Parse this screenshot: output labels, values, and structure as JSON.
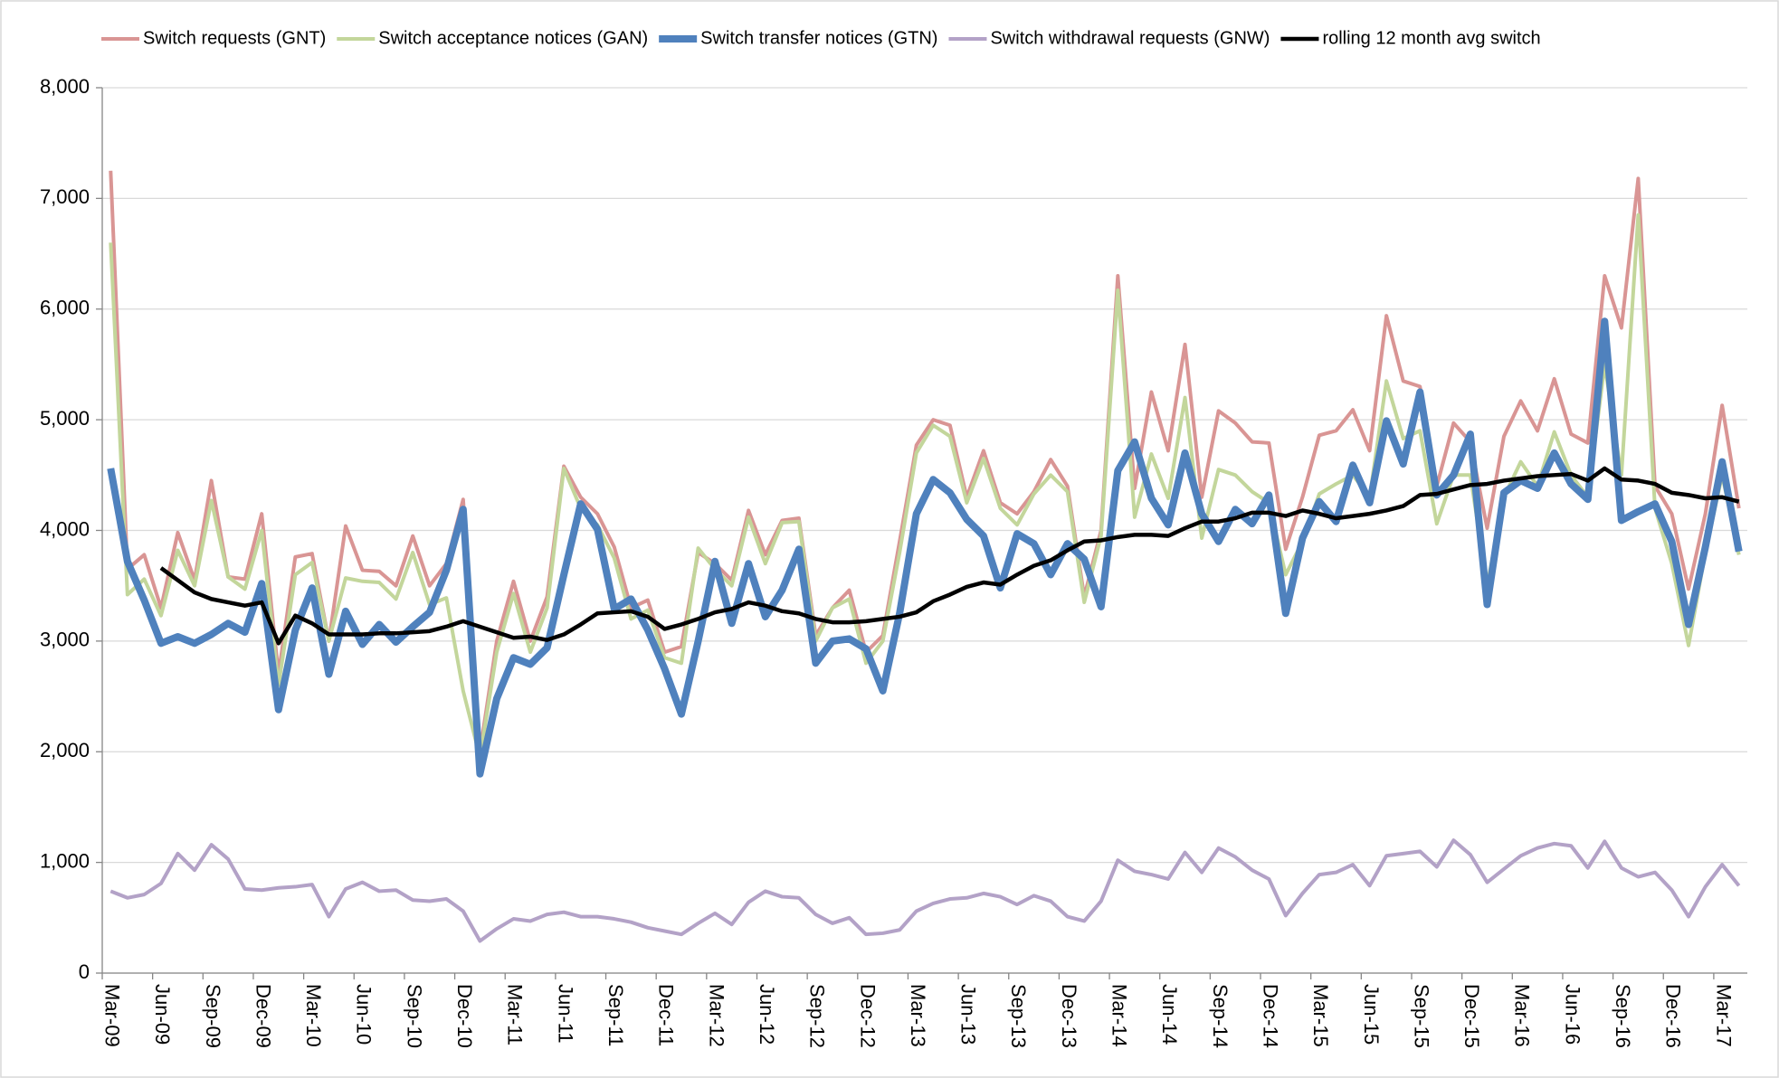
{
  "chart_data": {
    "type": "line",
    "categories": [
      "Mar-09",
      null,
      null,
      "Jun-09",
      null,
      null,
      "Sep-09",
      null,
      null,
      "Dec-09",
      null,
      null,
      "Mar-10",
      null,
      null,
      "Jun-10",
      null,
      null,
      "Sep-10",
      null,
      null,
      "Dec-10",
      null,
      null,
      "Mar-11",
      null,
      null,
      "Jun-11",
      null,
      null,
      "Sep-11",
      null,
      null,
      "Dec-11",
      null,
      null,
      "Mar-12",
      null,
      null,
      "Jun-12",
      null,
      null,
      "Sep-12",
      null,
      null,
      "Dec-12",
      null,
      null,
      "Mar-13",
      null,
      null,
      "Jun-13",
      null,
      null,
      "Sep-13",
      null,
      null,
      "Dec-13",
      null,
      null,
      "Mar-14",
      null,
      null,
      "Jun-14",
      null,
      null,
      "Sep-14",
      null,
      null,
      "Dec-14",
      null,
      null,
      "Mar-15",
      null,
      null,
      "Jun-15",
      null,
      null,
      "Sep-15",
      null,
      null,
      "Dec-15",
      null,
      null,
      "Mar-16",
      null,
      null,
      "Jun-16",
      null,
      null,
      "Sep-16",
      null,
      null,
      "Dec-16",
      null,
      null,
      "Mar-17",
      null
    ],
    "series": [
      {
        "name": "Switch requests (GNT)",
        "color": "#d99594",
        "values": [
          7250,
          3650,
          3780,
          3300,
          3980,
          3550,
          4450,
          3580,
          3560,
          4150,
          2700,
          3760,
          3790,
          3000,
          4040,
          3640,
          3630,
          3500,
          3950,
          3500,
          3700,
          4280,
          2000,
          3000,
          3540,
          3000,
          3400,
          4580,
          4300,
          4150,
          3850,
          3300,
          3370,
          2900,
          2950,
          3800,
          3700,
          3550,
          4180,
          3780,
          4090,
          4110,
          3050,
          3300,
          3460,
          2900,
          3050,
          3900,
          4770,
          5000,
          4950,
          4300,
          4720,
          4250,
          4150,
          4350,
          4640,
          4400,
          3400,
          4000,
          6300,
          4380,
          5250,
          4720,
          5680,
          4300,
          5080,
          4970,
          4800,
          4790,
          3830,
          4300,
          4860,
          4900,
          5090,
          4720,
          5940,
          5350,
          5300,
          4400,
          4970,
          4800,
          4020,
          4850,
          5170,
          4900,
          5370,
          4870,
          4790,
          6300,
          5830,
          7180,
          4400,
          4150,
          3470,
          4150,
          5130,
          4200
        ]
      },
      {
        "name": "Switch acceptance notices (GAN)",
        "color": "#c3d69b",
        "values": [
          6600,
          3420,
          3560,
          3230,
          3820,
          3500,
          4270,
          3580,
          3470,
          4000,
          2600,
          3600,
          3710,
          3000,
          3570,
          3540,
          3530,
          3380,
          3800,
          3330,
          3390,
          2550,
          1950,
          2900,
          3430,
          2900,
          3300,
          4560,
          4200,
          4050,
          3750,
          3200,
          3280,
          2850,
          2800,
          3840,
          3650,
          3500,
          4120,
          3700,
          4070,
          4080,
          3000,
          3300,
          3380,
          2800,
          3000,
          3800,
          4700,
          4950,
          4850,
          4250,
          4650,
          4200,
          4050,
          4330,
          4500,
          4350,
          3350,
          3950,
          6170,
          4120,
          4690,
          4290,
          5200,
          3930,
          4550,
          4500,
          4350,
          4250,
          3600,
          3900,
          4330,
          4420,
          4500,
          4300,
          5350,
          4830,
          4900,
          4060,
          4500,
          4500,
          3500,
          4300,
          4620,
          4400,
          4890,
          4500,
          4300,
          5500,
          4500,
          6850,
          4200,
          3700,
          2960,
          3800,
          4500,
          3780
        ]
      },
      {
        "name": "Switch transfer notices (GTN)",
        "color": "#4f81bd",
        "values": [
          4560,
          3720,
          3370,
          2980,
          3040,
          2980,
          3060,
          3160,
          3080,
          3520,
          2380,
          3100,
          3480,
          2700,
          3270,
          2970,
          3150,
          2990,
          3130,
          3260,
          3640,
          4190,
          1800,
          2480,
          2850,
          2790,
          2940,
          3600,
          4240,
          4010,
          3290,
          3380,
          3100,
          2750,
          2340,
          3000,
          3720,
          3160,
          3700,
          3220,
          3460,
          3830,
          2800,
          3000,
          3020,
          2930,
          2550,
          3250,
          4150,
          4460,
          4340,
          4100,
          3950,
          3480,
          3970,
          3880,
          3600,
          3880,
          3740,
          3310,
          4540,
          4800,
          4290,
          4050,
          4700,
          4150,
          3900,
          4190,
          4060,
          4320,
          3250,
          3930,
          4260,
          4080,
          4590,
          4250,
          4990,
          4600,
          5250,
          4320,
          4500,
          4870,
          3330,
          4340,
          4450,
          4380,
          4700,
          4420,
          4280,
          5890,
          4090,
          4170,
          4240,
          3900,
          3150,
          3850,
          4620,
          3810
        ]
      },
      {
        "name": "Switch withdrawal requests (GNW)",
        "color": "#b3a2c7",
        "values": [
          740,
          680,
          710,
          810,
          1080,
          930,
          1160,
          1030,
          760,
          750,
          770,
          780,
          800,
          510,
          760,
          820,
          740,
          750,
          660,
          650,
          670,
          560,
          290,
          400,
          490,
          470,
          530,
          550,
          510,
          510,
          490,
          460,
          410,
          380,
          350,
          450,
          540,
          440,
          640,
          740,
          690,
          680,
          530,
          450,
          500,
          350,
          360,
          390,
          560,
          630,
          670,
          680,
          720,
          690,
          620,
          700,
          650,
          510,
          470,
          650,
          1020,
          920,
          890,
          850,
          1090,
          910,
          1130,
          1050,
          930,
          850,
          520,
          720,
          890,
          910,
          980,
          790,
          1060,
          1080,
          1100,
          960,
          1200,
          1070,
          820,
          940,
          1060,
          1130,
          1170,
          1150,
          950,
          1190,
          950,
          870,
          910,
          750,
          510,
          780,
          980,
          790
        ]
      },
      {
        "name": "rolling 12 month avg switch",
        "color": "#000000",
        "values": [
          null,
          null,
          null,
          3660,
          3550,
          3440,
          3380,
          3350,
          3320,
          3350,
          2980,
          3230,
          3160,
          3060,
          3060,
          3060,
          3070,
          3070,
          3080,
          3090,
          3130,
          3180,
          3130,
          3080,
          3030,
          3040,
          3010,
          3060,
          3150,
          3250,
          3260,
          3270,
          3220,
          3110,
          3150,
          3200,
          3260,
          3290,
          3350,
          3320,
          3270,
          3250,
          3200,
          3170,
          3170,
          3180,
          3200,
          3220,
          3260,
          3360,
          3420,
          3490,
          3530,
          3510,
          3600,
          3680,
          3730,
          3820,
          3900,
          3910,
          3940,
          3960,
          3960,
          3950,
          4020,
          4080,
          4080,
          4110,
          4160,
          4160,
          4130,
          4180,
          4150,
          4110,
          4130,
          4150,
          4180,
          4220,
          4320,
          4330,
          4370,
          4410,
          4420,
          4450,
          4470,
          4490,
          4500,
          4510,
          4450,
          4560,
          4460,
          4450,
          4420,
          4340,
          4320,
          4290,
          4300,
          4260
        ]
      }
    ],
    "ylim": [
      0,
      8000
    ],
    "yticks": [
      0,
      {
        "value": 1000,
        "label": "1,000"
      },
      {
        "value": 2000,
        "label": "2,000"
      },
      {
        "value": 3000,
        "label": "3,000"
      },
      {
        "value": 4000,
        "label": "4,000"
      },
      {
        "value": 5000,
        "label": "5,000"
      },
      {
        "value": 6000,
        "label": "6,000"
      },
      {
        "value": 7000,
        "label": "7,000"
      },
      {
        "value": 8000,
        "label": "8,000"
      }
    ],
    "grid": true,
    "legend": "top"
  }
}
